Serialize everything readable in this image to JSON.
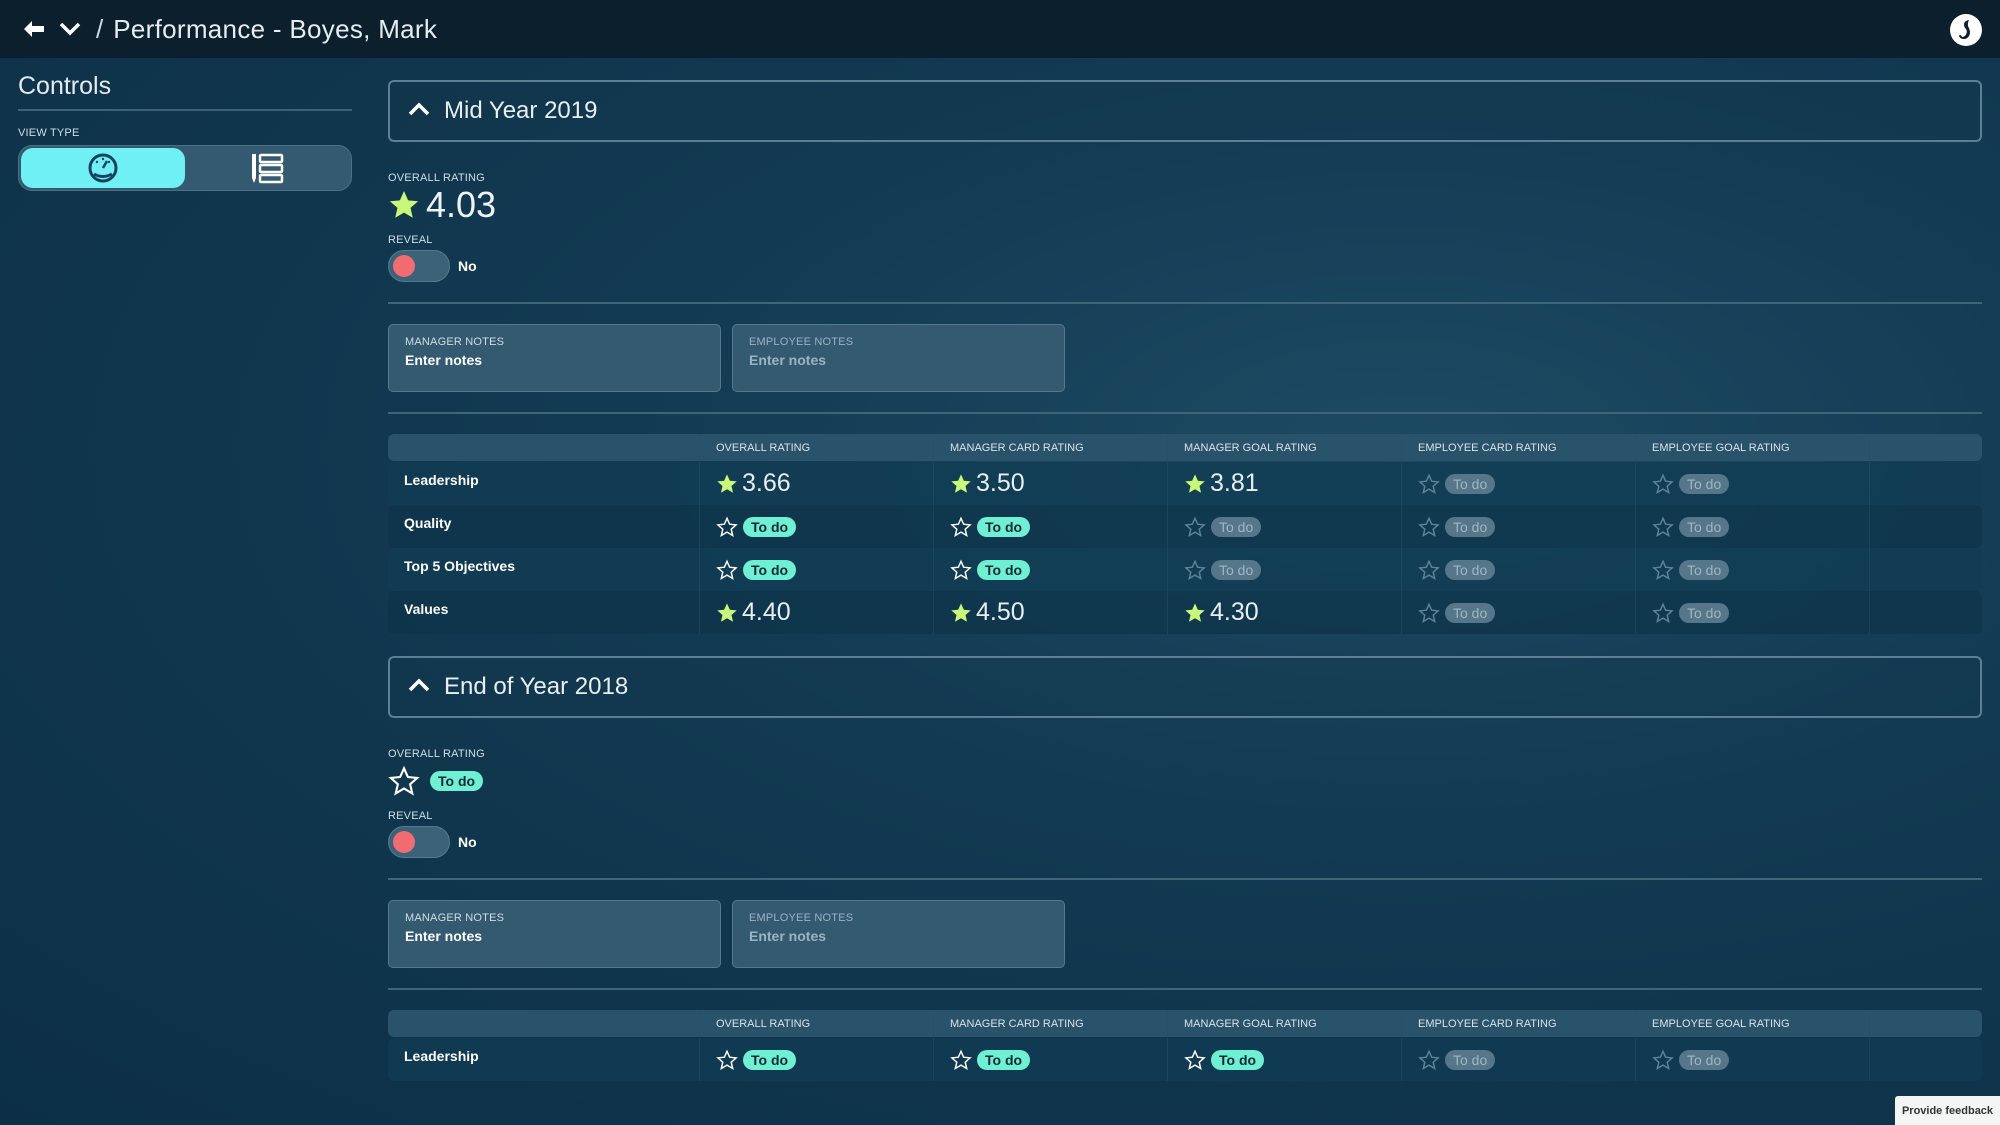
{
  "header": {
    "title": "Performance - Boyes, Mark",
    "separator": "/",
    "icons": [
      "back-arrow-icon",
      "chevron-down-icon",
      "logo-icon"
    ]
  },
  "sidebar": {
    "title": "Controls",
    "view_type_label": "VIEW TYPE",
    "view_options": [
      {
        "icon": "gauge-icon",
        "selected": true
      },
      {
        "icon": "list-icon",
        "selected": false
      }
    ]
  },
  "colors": {
    "accent": "#6ff0f5",
    "star": "#c8f77a",
    "todo": "#6ff0d2",
    "toggle_off": "#f06c70"
  },
  "sections": [
    {
      "title": "Mid Year 2019",
      "overall_label": "OVERALL RATING",
      "overall_value": "4.03",
      "reveal_label": "REVEAL",
      "reveal_value": "No",
      "manager_notes": {
        "label": "MANAGER NOTES",
        "placeholder": "Enter notes"
      },
      "employee_notes": {
        "label": "EMPLOYEE NOTES",
        "placeholder": "Enter notes"
      },
      "columns": [
        "OVERALL RATING",
        "MANAGER CARD RATING",
        "MANAGER GOAL RATING",
        "EMPLOYEE CARD RATING",
        "EMPLOYEE GOAL RATING"
      ],
      "rows": [
        {
          "label": "Leadership",
          "cells": [
            {
              "value": "3.66"
            },
            {
              "value": "3.50"
            },
            {
              "value": "3.81"
            },
            {
              "todo": "To do",
              "dim": true
            },
            {
              "todo": "To do",
              "dim": true
            }
          ]
        },
        {
          "label": "Quality",
          "cells": [
            {
              "todo": "To do"
            },
            {
              "todo": "To do"
            },
            {
              "todo": "To do",
              "dim": true
            },
            {
              "todo": "To do",
              "dim": true
            },
            {
              "todo": "To do",
              "dim": true
            }
          ]
        },
        {
          "label": "Top 5 Objectives",
          "cells": [
            {
              "todo": "To do"
            },
            {
              "todo": "To do"
            },
            {
              "todo": "To do",
              "dim": true
            },
            {
              "todo": "To do",
              "dim": true
            },
            {
              "todo": "To do",
              "dim": true
            }
          ]
        },
        {
          "label": "Values",
          "cells": [
            {
              "value": "4.40"
            },
            {
              "value": "4.50"
            },
            {
              "value": "4.30"
            },
            {
              "todo": "To do",
              "dim": true
            },
            {
              "todo": "To do",
              "dim": true
            }
          ]
        }
      ]
    },
    {
      "title": "End of Year 2018",
      "overall_label": "OVERALL RATING",
      "overall_todo": "To do",
      "reveal_label": "REVEAL",
      "reveal_value": "No",
      "manager_notes": {
        "label": "MANAGER NOTES",
        "placeholder": "Enter notes"
      },
      "employee_notes": {
        "label": "EMPLOYEE NOTES",
        "placeholder": "Enter notes"
      },
      "columns": [
        "OVERALL RATING",
        "MANAGER CARD RATING",
        "MANAGER GOAL RATING",
        "EMPLOYEE CARD RATING",
        "EMPLOYEE GOAL RATING"
      ],
      "rows": [
        {
          "label": "Leadership",
          "cells": [
            {
              "todo": "To do"
            },
            {
              "todo": "To do"
            },
            {
              "todo": "To do"
            },
            {
              "todo": "To do",
              "dim": true
            },
            {
              "todo": "To do",
              "dim": true
            }
          ]
        }
      ]
    }
  ],
  "feedback": {
    "label": "Provide feedback"
  }
}
